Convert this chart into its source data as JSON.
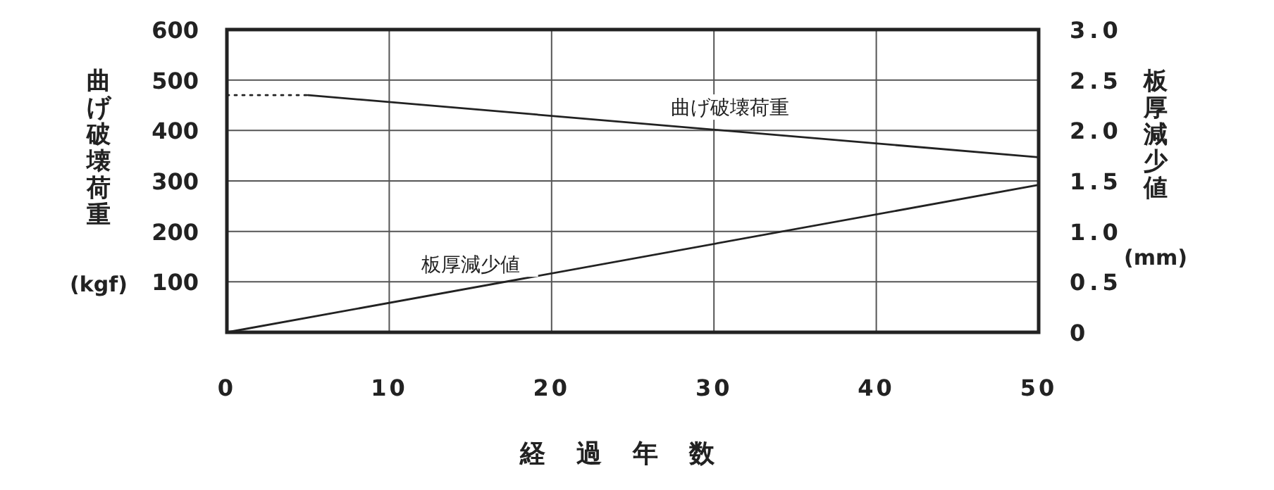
{
  "chart_data": {
    "type": "line",
    "xlabel": "経過年数",
    "ylabel": "曲げ破壊荷重 (kgf)",
    "y2label": "板厚減少値 (mm)",
    "xlim": [
      0,
      50
    ],
    "xticks": [
      0,
      10,
      20,
      30,
      40,
      50
    ],
    "ylim": [
      0,
      600
    ],
    "yticks": [
      100,
      200,
      300,
      400,
      500,
      600
    ],
    "y2lim": [
      0,
      3
    ],
    "y2ticks": [
      0,
      0.5,
      {
        "value": 1,
        "label": "1.0"
      },
      1.5,
      {
        "value": 2,
        "label": "2.0"
      },
      2.5,
      {
        "value": 3,
        "label": "3.0"
      }
    ],
    "grid": true,
    "marker": "none",
    "series": [
      {
        "name": "曲げ破壊荷重",
        "color": "#222222",
        "x": [
          5,
          50
        ],
        "values": [
          470,
          347
        ],
        "line_style": "solid"
      },
      {
        "color": "#222222",
        "x": [
          0,
          5
        ],
        "values": [
          470,
          470
        ],
        "line_style": "dotted"
      },
      {
        "name": "板厚減少値",
        "color": "#222222",
        "x": [
          0,
          50
        ],
        "values": [
          0,
          1.46
        ],
        "axis": "y2",
        "line_style": "solid"
      }
    ]
  }
}
